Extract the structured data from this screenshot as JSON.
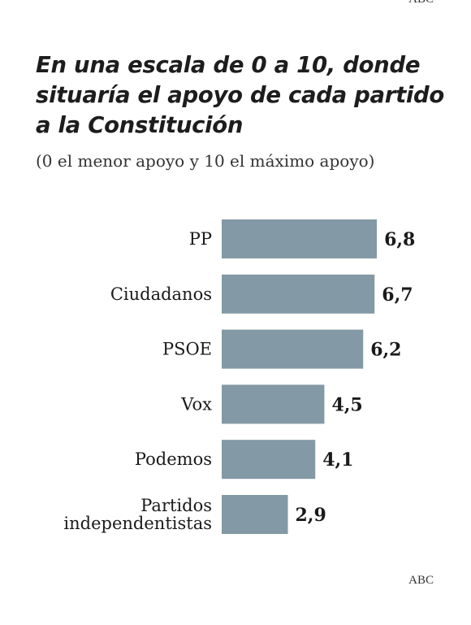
{
  "header": {
    "top_credit": "ABC",
    "title": "En una escala de 0 a 10, donde situaría el apoyo de cada partido a la Constitución",
    "subtitle": "(0 el menor apoyo y 10 el máximo apoyo)"
  },
  "footer": {
    "credit": "ABC"
  },
  "colors": {
    "bar": "#8399a5",
    "text": "#1a1a1a"
  },
  "chart_data": {
    "type": "bar",
    "orientation": "horizontal",
    "title": "En una escala de 0 a 10, donde situaría el apoyo de cada partido a la Constitución",
    "subtitle": "(0 el menor apoyo y 10 el máximo apoyo)",
    "categories": [
      [
        "PP"
      ],
      [
        "Ciudadanos"
      ],
      [
        "PSOE"
      ],
      [
        "Vox"
      ],
      [
        "Podemos"
      ],
      [
        "Partidos",
        "independentistas"
      ]
    ],
    "values": [
      6.8,
      6.7,
      6.2,
      4.5,
      4.1,
      2.9
    ],
    "value_labels": [
      "6,8",
      "6,7",
      "6,2",
      "4,5",
      "4,1",
      "2,9"
    ],
    "xlim": [
      0,
      10
    ],
    "grid": false,
    "legend": "none"
  }
}
